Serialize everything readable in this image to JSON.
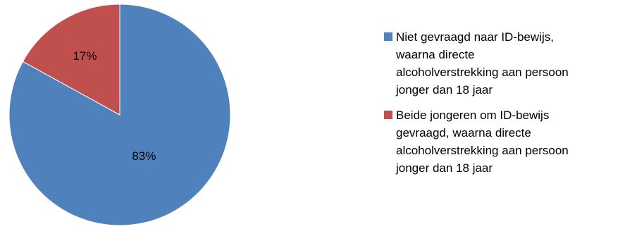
{
  "chart_data": {
    "type": "pie",
    "title": "",
    "legend_position": "right",
    "slices": [
      {
        "label_lines": [
          "Niet gevraagd naar ID-bewijs,",
          "waarna directe",
          "alcoholverstrekking aan persoon",
          "jonger dan 18 jaar"
        ],
        "value": 83,
        "data_label": "83%",
        "color": "#4F81BD"
      },
      {
        "label_lines": [
          "Beide jongeren om ID-bewijs",
          "gevraagd, waarna directe",
          "alcoholverstrekking aan persoon",
          "jonger dan 18 jaar"
        ],
        "value": 17,
        "data_label": "17%",
        "color": "#C0504D"
      }
    ]
  }
}
